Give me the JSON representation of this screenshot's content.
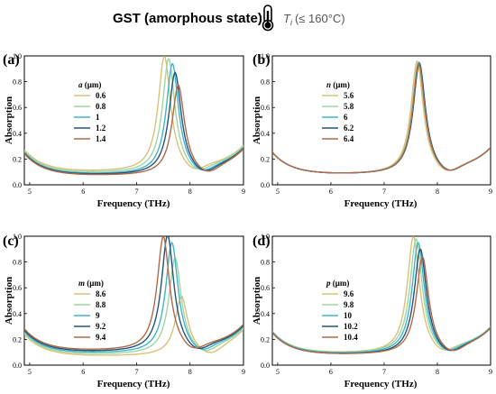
{
  "header": {
    "title": "GST (amorphous state)",
    "temperature_symbol": "T",
    "temperature_subscript": "i",
    "temperature_condition": "(≤ 160°C)",
    "icon": "thermometer-icon"
  },
  "chart_data": [
    {
      "type": "line",
      "panel_label": "(a)",
      "xlabel": "Frequency (THz)",
      "ylabel": "Absorption",
      "xlim": [
        4.9,
        9
      ],
      "ylim": [
        0,
        1.0
      ],
      "xticks": [
        "5",
        "6",
        "7",
        "8",
        "9"
      ],
      "yticks": [
        "0.0",
        "0.2",
        "0.4",
        "0.6",
        "0.8",
        "1.0"
      ],
      "legend_var": "a",
      "legend_unit": " (μm)",
      "legend_position": "upper-left",
      "series": [
        {
          "name": "0.6",
          "color": "#d8c27a",
          "f0": 7.52,
          "peak": 0.99,
          "bg": 0.1
        },
        {
          "name": "0.8",
          "color": "#9ed6a5",
          "f0": 7.6,
          "peak": 0.97,
          "bg": 0.09
        },
        {
          "name": "1",
          "color": "#43b3c8",
          "f0": 7.67,
          "peak": 0.93,
          "bg": 0.08
        },
        {
          "name": "1.2",
          "color": "#24547a",
          "f0": 7.72,
          "peak": 0.86,
          "bg": 0.075
        },
        {
          "name": "1.4",
          "color": "#b06a4a",
          "f0": 7.78,
          "peak": 0.76,
          "bg": 0.07
        }
      ]
    },
    {
      "type": "line",
      "panel_label": "(b)",
      "xlabel": "Frequency (THz)",
      "ylabel": "Absorption",
      "xlim": [
        4.9,
        9
      ],
      "ylim": [
        0,
        1.0
      ],
      "xticks": [
        "5",
        "6",
        "7",
        "8",
        "9"
      ],
      "yticks": [
        "0.0",
        "0.2",
        "0.4",
        "0.6",
        "0.8",
        "1.0"
      ],
      "legend_var": "n",
      "legend_unit": " (μm)",
      "legend_position": "upper-left",
      "series": [
        {
          "name": "5.6",
          "color": "#d8c27a",
          "f0": 7.62,
          "peak": 0.95,
          "bg": 0.08
        },
        {
          "name": "5.8",
          "color": "#9ed6a5",
          "f0": 7.64,
          "peak": 0.94,
          "bg": 0.08
        },
        {
          "name": "6",
          "color": "#43b3c8",
          "f0": 7.66,
          "peak": 0.94,
          "bg": 0.08
        },
        {
          "name": "6.2",
          "color": "#24547a",
          "f0": 7.66,
          "peak": 0.93,
          "bg": 0.08
        },
        {
          "name": "6.4",
          "color": "#b06a4a",
          "f0": 7.65,
          "peak": 0.93,
          "bg": 0.08
        }
      ]
    },
    {
      "type": "line",
      "panel_label": "(c)",
      "xlabel": "Frequency (THz)",
      "ylabel": "Absorption",
      "xlim": [
        4.9,
        9
      ],
      "ylim": [
        0,
        1.0
      ],
      "xticks": [
        "5",
        "6",
        "7",
        "8",
        "9"
      ],
      "yticks": [
        "0.0",
        "0.2",
        "0.4",
        "0.6",
        "0.8",
        "1.0"
      ],
      "legend_var": "m",
      "legend_unit": " (μm)",
      "legend_position": "lower-left",
      "series": [
        {
          "name": "8.6",
          "color": "#d8c27a",
          "f0": 7.84,
          "peak": 0.52,
          "bg": 0.07
        },
        {
          "name": "8.8",
          "color": "#9ed6a5",
          "f0": 7.72,
          "peak": 0.82,
          "bg": 0.08
        },
        {
          "name": "9",
          "color": "#43b3c8",
          "f0": 7.66,
          "peak": 0.94,
          "bg": 0.09
        },
        {
          "name": "9.2",
          "color": "#24547a",
          "f0": 7.58,
          "peak": 1.0,
          "bg": 0.1
        },
        {
          "name": "9.4",
          "color": "#b06a4a",
          "f0": 7.5,
          "peak": 0.99,
          "bg": 0.11
        }
      ]
    },
    {
      "type": "line",
      "panel_label": "(d)",
      "xlabel": "Frequency (THz)",
      "ylabel": "Absorption",
      "xlim": [
        4.9,
        9
      ],
      "ylim": [
        0,
        1.0
      ],
      "xticks": [
        "5",
        "6",
        "7",
        "8",
        "9"
      ],
      "yticks": [
        "0.0",
        "0.2",
        "0.4",
        "0.6",
        "0.8",
        "1.0"
      ],
      "legend_var": "p",
      "legend_unit": " (μm)",
      "legend_position": "lower-left",
      "series": [
        {
          "name": "9.6",
          "color": "#d8c27a",
          "f0": 7.55,
          "peak": 0.99,
          "bg": 0.09
        },
        {
          "name": "9.8",
          "color": "#9ed6a5",
          "f0": 7.6,
          "peak": 0.97,
          "bg": 0.09
        },
        {
          "name": "10",
          "color": "#43b3c8",
          "f0": 7.64,
          "peak": 0.94,
          "bg": 0.085
        },
        {
          "name": "10.2",
          "color": "#24547a",
          "f0": 7.68,
          "peak": 0.89,
          "bg": 0.08
        },
        {
          "name": "10.4",
          "color": "#b06a4a",
          "f0": 7.72,
          "peak": 0.83,
          "bg": 0.08
        }
      ]
    }
  ]
}
